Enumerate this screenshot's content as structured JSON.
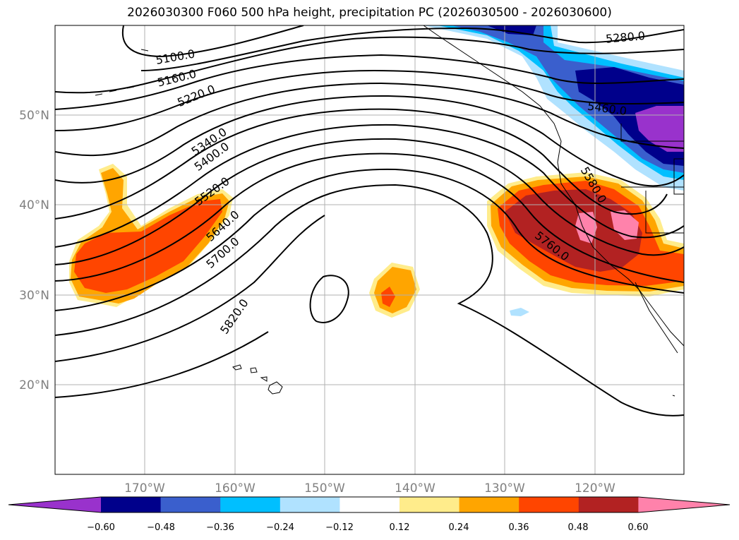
{
  "title": "2026030300 F060 500 hPa height, precipitation PC (2026030500 - 2026030600)",
  "map": {
    "lat_labels": [
      "50°N",
      "40°N",
      "30°N",
      "20°N"
    ],
    "lon_labels": [
      "170°W",
      "160°W",
      "150°W",
      "140°W",
      "130°W",
      "120°W"
    ],
    "contour_labels": [
      "5100.0",
      "5160.0",
      "5220.0",
      "5280.0",
      "5340.0",
      "5400.0",
      "5460.0",
      "5520.0",
      "5580.0",
      "5640.0",
      "5700.0",
      "5760.0",
      "5820.0"
    ]
  },
  "colorbar": {
    "ticks": [
      "−0.60",
      "−0.48",
      "−0.36",
      "−0.24",
      "−0.12",
      "0.12",
      "0.24",
      "0.36",
      "0.48",
      "0.60"
    ],
    "colors": [
      "#9932cc",
      "#00008b",
      "#3a5fcd",
      "#00bfff",
      "#b0e2ff",
      "#ffffff",
      "#ffec8b",
      "#ffa500",
      "#ff4500",
      "#b22222",
      "#ff82ab"
    ]
  }
}
